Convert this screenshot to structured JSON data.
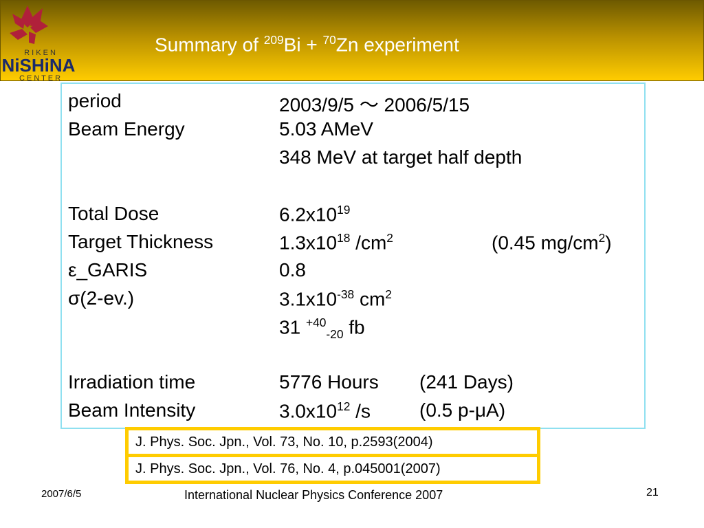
{
  "header": {
    "title": [
      "Summary of ",
      "209",
      "Bi + ",
      "70",
      "Zn experiment"
    ],
    "logo": {
      "top": "R I K E N",
      "main": "NiSHiNA",
      "bottom": "C E N T E R"
    }
  },
  "rows": [
    {
      "label": "period",
      "value": [
        "2003/9/5 ～ 2006/5/15"
      ]
    },
    {
      "label": "Beam Energy",
      "value": [
        "5.03 AMeV"
      ]
    },
    {
      "value": [
        "348 MeV at target half depth"
      ]
    },
    {
      "label": "Total Dose",
      "value": [
        "6.2x10",
        "19"
      ]
    },
    {
      "label": "Target Thickness",
      "value": [
        "1.3x10",
        "18",
        " /cm",
        "2"
      ],
      "note": [
        "(0.45 mg/cm",
        "2",
        ")"
      ]
    },
    {
      "label": "ε_GARIS",
      "value": [
        "0.8"
      ]
    },
    {
      "label": "σ(2-ev.)",
      "value": [
        "3.1x10",
        "-38",
        " cm",
        "2"
      ]
    },
    {
      "value": [
        "31 ",
        "+40",
        "-20",
        " fb"
      ]
    },
    {
      "label": "Irradiation time",
      "value": [
        "5776 Hours"
      ],
      "note": [
        "(241 Days)"
      ]
    },
    {
      "label": "Beam Intensity",
      "value": [
        "3.0x10",
        "12",
        " /s"
      ],
      "note": [
        "(0.5 p-μA)"
      ]
    }
  ],
  "references": [
    "J. Phys. Soc. Jpn., Vol. 73, No. 10, p.2593(2004)",
    "J. Phys. Soc. Jpn., Vol. 76, No. 4, p.045001(2007)"
  ],
  "footer": {
    "date": "2007/6/5",
    "conference": "International Nuclear Physics Conference 2007",
    "page": "21"
  }
}
